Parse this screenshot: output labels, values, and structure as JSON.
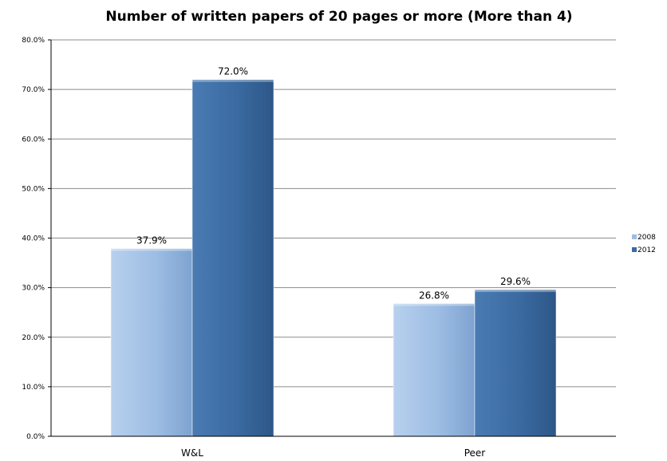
{
  "chart_data": {
    "type": "bar",
    "title": "Number of written papers of 20 pages or more (More than 4)",
    "categories": [
      "W&L",
      "Peer"
    ],
    "series": [
      {
        "name": "2008",
        "values": [
          37.9,
          26.8
        ],
        "labels": [
          "37.9%",
          "26.8%"
        ],
        "color": "#9dbde3"
      },
      {
        "name": "2012",
        "values": [
          72.0,
          29.6
        ],
        "labels": [
          "72.0%",
          "29.6%"
        ],
        "color": "#3a6aa0"
      }
    ],
    "ylim": [
      0,
      80
    ],
    "y_ticks": [
      "0.0%",
      "10.0%",
      "20.0%",
      "30.0%",
      "40.0%",
      "50.0%",
      "60.0%",
      "70.0%",
      "80.0%"
    ],
    "grid": true,
    "legend_position": "right",
    "xlabel": "",
    "ylabel": ""
  }
}
